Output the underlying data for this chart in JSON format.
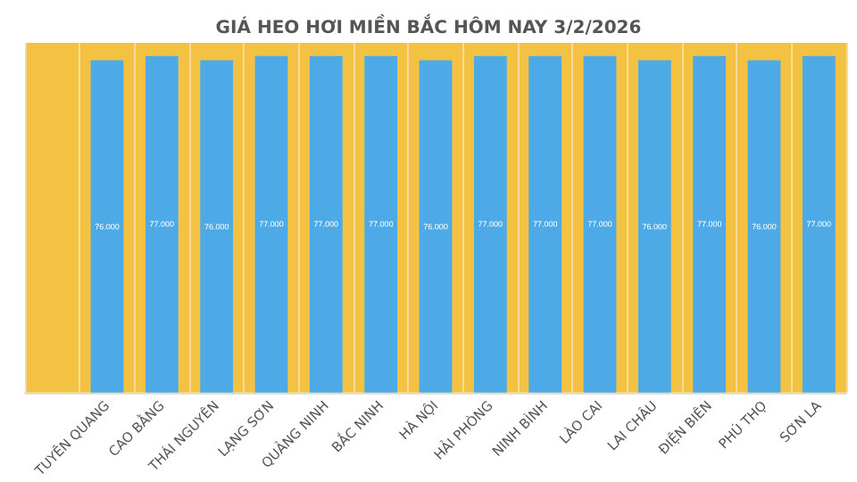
{
  "chart_data": {
    "type": "bar",
    "title": "GIÁ HEO HƠI MIỀN BẮC HÔM NAY 3/2/2026",
    "categories": [
      null,
      "TUYÊN QUANG",
      "CAO BẰNG",
      "THÁI NGUYÊN",
      "LẠNG SƠN",
      "QUẢNG NINH",
      "BẮC NINH",
      "HÀ NỘI",
      "HẢI PHÒNG",
      "NINH BÌNH",
      "LÀO CAI",
      "LAI CHÂU",
      "ĐIỆN BIÊN",
      "PHÚ THỌ",
      "SƠN LA"
    ],
    "values": [
      null,
      76000,
      77000,
      76000,
      77000,
      77000,
      77000,
      76000,
      77000,
      77000,
      77000,
      76000,
      77000,
      76000,
      77000
    ],
    "value_labels": [
      null,
      "76.000",
      "77.000",
      "76.000",
      "77.000",
      "77.000",
      "77.000",
      "76.000",
      "77.000",
      "77.000",
      "77.000",
      "76.000",
      "77.000",
      "76.000",
      "77.000"
    ],
    "color": "#4eaae6",
    "grid": "x"
  }
}
